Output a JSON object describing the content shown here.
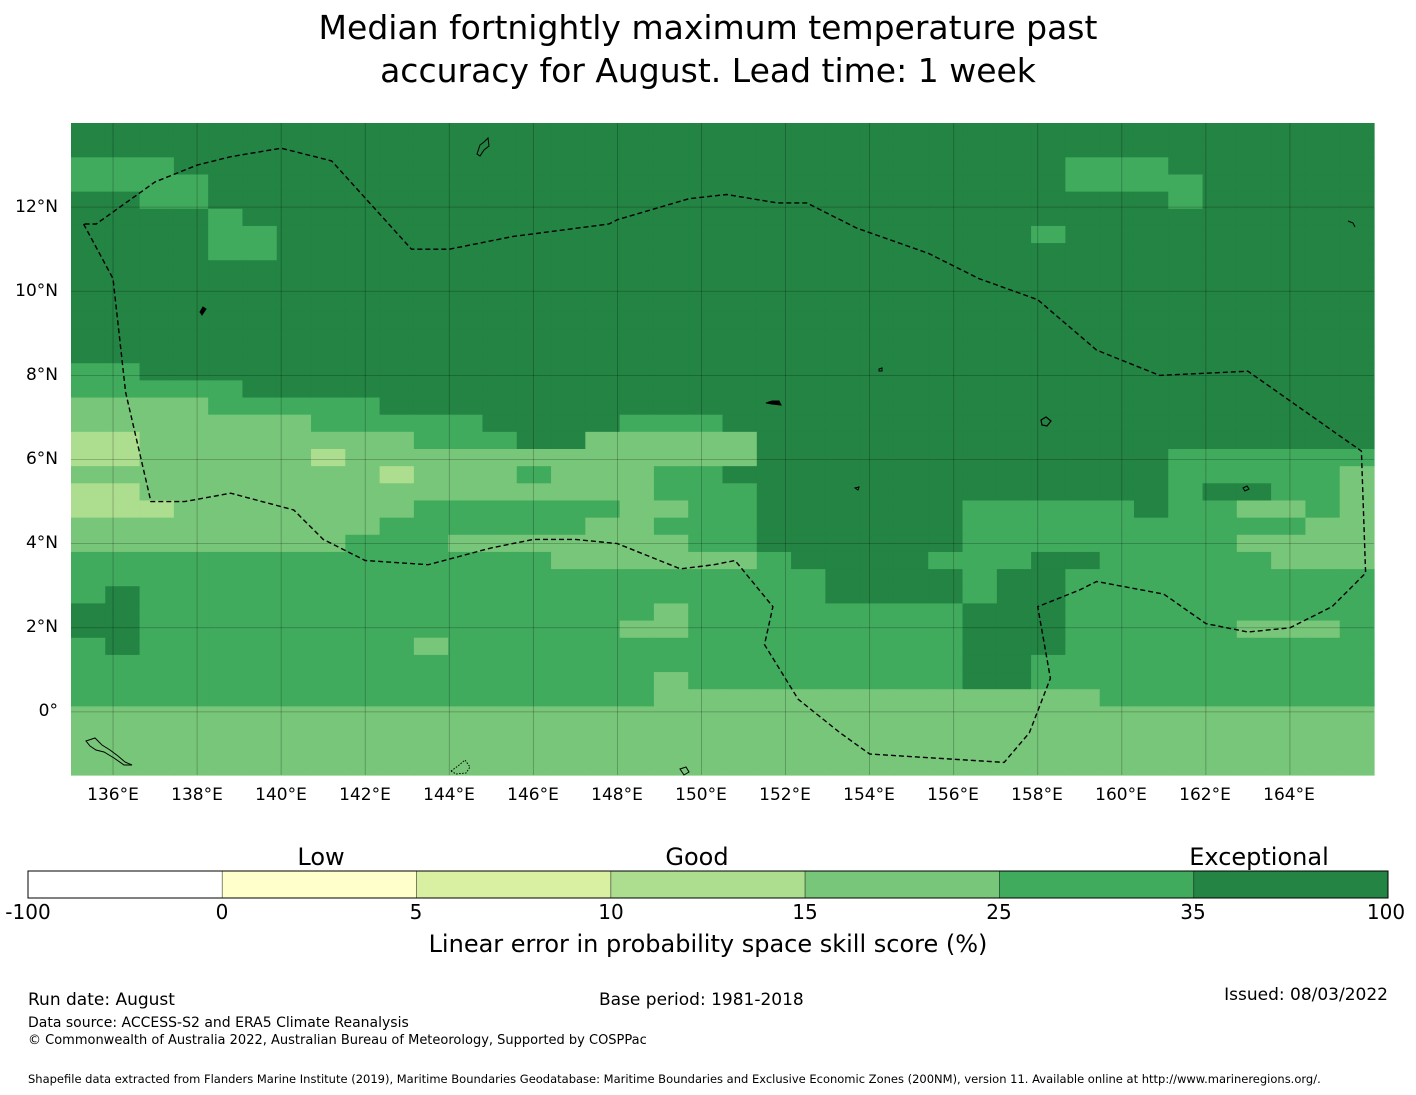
{
  "title_lines": [
    "Median fortnightly maximum temperature past",
    "accuracy for August. Lead time: 1 week"
  ],
  "map": {
    "lon_labels": [
      "136°E",
      "138°E",
      "140°E",
      "142°E",
      "144°E",
      "146°E",
      "148°E",
      "150°E",
      "152°E",
      "154°E",
      "156°E",
      "158°E",
      "160°E",
      "162°E",
      "164°E"
    ],
    "lat_labels": [
      "12°N",
      "10°N",
      "8°N",
      "6°N",
      "4°N",
      "2°N",
      "0°"
    ],
    "lon_range": [
      135.0,
      166.0
    ],
    "lat_range": [
      -1.5,
      14.0
    ],
    "grid_step_deg": 0.833,
    "colors": [
      "#ffffff",
      "#ffffcc",
      "#d9f0a3",
      "#addd8e",
      "#78c679",
      "#41ab5d",
      "#238443"
    ],
    "class_grid": [
      "66666666666666666666666666666666666666",
      "66666666666666666666666666666666666666",
      "55566666666666666666666666666555666666",
      "55556666666666666666666666666555566666",
      "66556666666666666666666666666666566666",
      "66665666666666666666666666666666666666",
      "66665566666666666666666666665666666666",
      "66665566666666666666666666666666666666",
      "66666666666666666666666666666666666666",
      "66666666666666666666666666666666666666",
      "66666666666666666666666666666666666666",
      "66666666666666666666666666666666666666",
      "66666666666666666666666666666666666666",
      "66666666666666666666666666666666666666",
      "55666666666666666666666666666666666666",
      "55555666666666666666666666666666666666",
      "44445555566666666666666666666666666666",
      "44444445555566665556666666666666666666",
      "33444444445556644444666666666666666666",
      "33444443444444444444666666666666555555",
      "44444444434445444556666666666666555554",
      "33444444444444444555666666666666566554",
      "33344444445555554455666666555556554454",
      "44444444455555544555666666555555555544",
      "44444444555444444455666666555555554444",
      "55555555555555444444566665556655555444",
      "55555555555555555555556666566555555555",
      "56555555555555555555556666566555555555",
      "66555555555555555455555555666555555555",
      "66555555555555554455555555666555554445",
      "56555555554555555555555555666555555555",
      "55555555555555555555555555665555555555",
      "55555555555555555455555555665555555555",
      "55555555555555555444444444444455555555",
      "44444444444444444444444444444444444444",
      "44444444444444444444444444444444444444",
      "44444444444444444444444444444444444444",
      "44444444444444444444444444444444444444"
    ],
    "eez_boundary_lonlat": [
      [
        135.3,
        11.6
      ],
      [
        136.0,
        10.3
      ],
      [
        136.3,
        7.6
      ],
      [
        136.9,
        5.0
      ],
      [
        137.7,
        5.0
      ],
      [
        138.8,
        5.2
      ],
      [
        140.3,
        4.8
      ],
      [
        141.0,
        4.1
      ],
      [
        142.0,
        3.6
      ],
      [
        143.5,
        3.5
      ],
      [
        145.0,
        3.9
      ],
      [
        146.0,
        4.1
      ],
      [
        147.0,
        4.1
      ],
      [
        148.0,
        4.0
      ],
      [
        149.5,
        3.4
      ],
      [
        150.3,
        3.5
      ],
      [
        150.8,
        3.6
      ],
      [
        151.7,
        2.5
      ],
      [
        151.5,
        1.6
      ],
      [
        152.3,
        0.3
      ],
      [
        153.3,
        -0.5
      ],
      [
        154.0,
        -1.0
      ],
      [
        157.2,
        -1.2
      ],
      [
        157.8,
        -0.5
      ],
      [
        158.3,
        0.8
      ],
      [
        158.0,
        2.5
      ],
      [
        159.0,
        2.9
      ],
      [
        159.4,
        3.1
      ],
      [
        161.0,
        2.8
      ],
      [
        162.0,
        2.1
      ],
      [
        163.0,
        1.9
      ],
      [
        164.0,
        2.0
      ],
      [
        165.0,
        2.5
      ],
      [
        165.8,
        3.3
      ],
      [
        165.7,
        6.2
      ],
      [
        163.0,
        8.1
      ],
      [
        160.9,
        8.0
      ],
      [
        159.4,
        8.6
      ],
      [
        158.0,
        9.8
      ],
      [
        156.6,
        10.3
      ],
      [
        155.4,
        10.9
      ],
      [
        153.7,
        11.5
      ],
      [
        152.5,
        12.1
      ],
      [
        151.8,
        12.1
      ],
      [
        150.6,
        12.3
      ],
      [
        149.7,
        12.2
      ],
      [
        148.0,
        11.7
      ],
      [
        147.8,
        11.6
      ],
      [
        145.5,
        11.3
      ],
      [
        144.0,
        11.0
      ],
      [
        143.1,
        11.0
      ],
      [
        141.2,
        13.1
      ],
      [
        140.0,
        13.4
      ],
      [
        138.8,
        13.2
      ],
      [
        138.0,
        13.0
      ],
      [
        137.0,
        12.6
      ],
      [
        135.6,
        11.6
      ],
      [
        135.3,
        11.6
      ]
    ]
  },
  "colorbar": {
    "category_labels": [
      "Low",
      "Good",
      "Exceptional"
    ],
    "tick_labels": [
      "-100",
      "0",
      "5",
      "10",
      "15",
      "25",
      "35",
      "100"
    ],
    "segment_colors": [
      "#ffffff",
      "#ffffcc",
      "#d9f0a3",
      "#addd8e",
      "#78c679",
      "#41ab5d",
      "#238443"
    ],
    "label": "Linear error in probability space skill score (%)"
  },
  "footer": {
    "run_date": "Run date: August",
    "base_period": "Base period: 1981-2018",
    "issued": "Issued: 08/03/2022",
    "data_source": "Data source: ACCESS-S2 and ERA5 Climate Reanalysis",
    "copyright": "© Commonwealth of Australia 2022, Australian Bureau of Meteorology, Supported by COSPPac",
    "shapefile_note": "Shapefile data extracted from Flanders Marine Institute (2019), Maritime Boundaries Geodatabase: Maritime Boundaries and Exclusive Economic Zones (200NM), version 11. Available online at http://www.marineregions.org/."
  }
}
